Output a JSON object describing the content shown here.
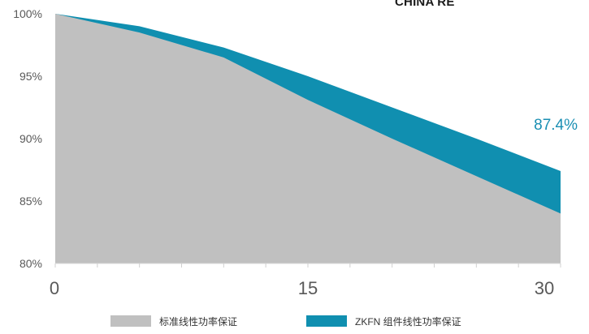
{
  "brand": {
    "logo_text": "CHINA RE"
  },
  "chart_data": {
    "type": "area",
    "title": "",
    "xlabel": "",
    "ylabel": "",
    "x": [
      0,
      5,
      10,
      15,
      20,
      25,
      30
    ],
    "xlim": [
      0,
      30
    ],
    "ylim": [
      80,
      100
    ],
    "x_ticks": [
      "0",
      "15",
      "30"
    ],
    "x_tick_values": [
      0,
      15,
      30
    ],
    "y_ticks": [
      "80%",
      "85%",
      "90%",
      "95%",
      "100%"
    ],
    "y_tick_values": [
      80,
      85,
      90,
      95,
      100
    ],
    "series": [
      {
        "name": "标准线性功率保证",
        "color": "#c0c0c0",
        "values": [
          100,
          98.5,
          96.5,
          93.1,
          90.0,
          87.0,
          84.0
        ]
      },
      {
        "name": "ZKFN 组件线性功率保证",
        "color": "#108fb0",
        "values": [
          100,
          99.0,
          97.3,
          95.0,
          92.5,
          90.0,
          87.4
        ]
      }
    ],
    "annotations": [
      {
        "text": "87.4%",
        "x": 30,
        "y": 87.4,
        "color": "#1a8fb3"
      }
    ],
    "grid": false,
    "legend_position": "bottom"
  }
}
